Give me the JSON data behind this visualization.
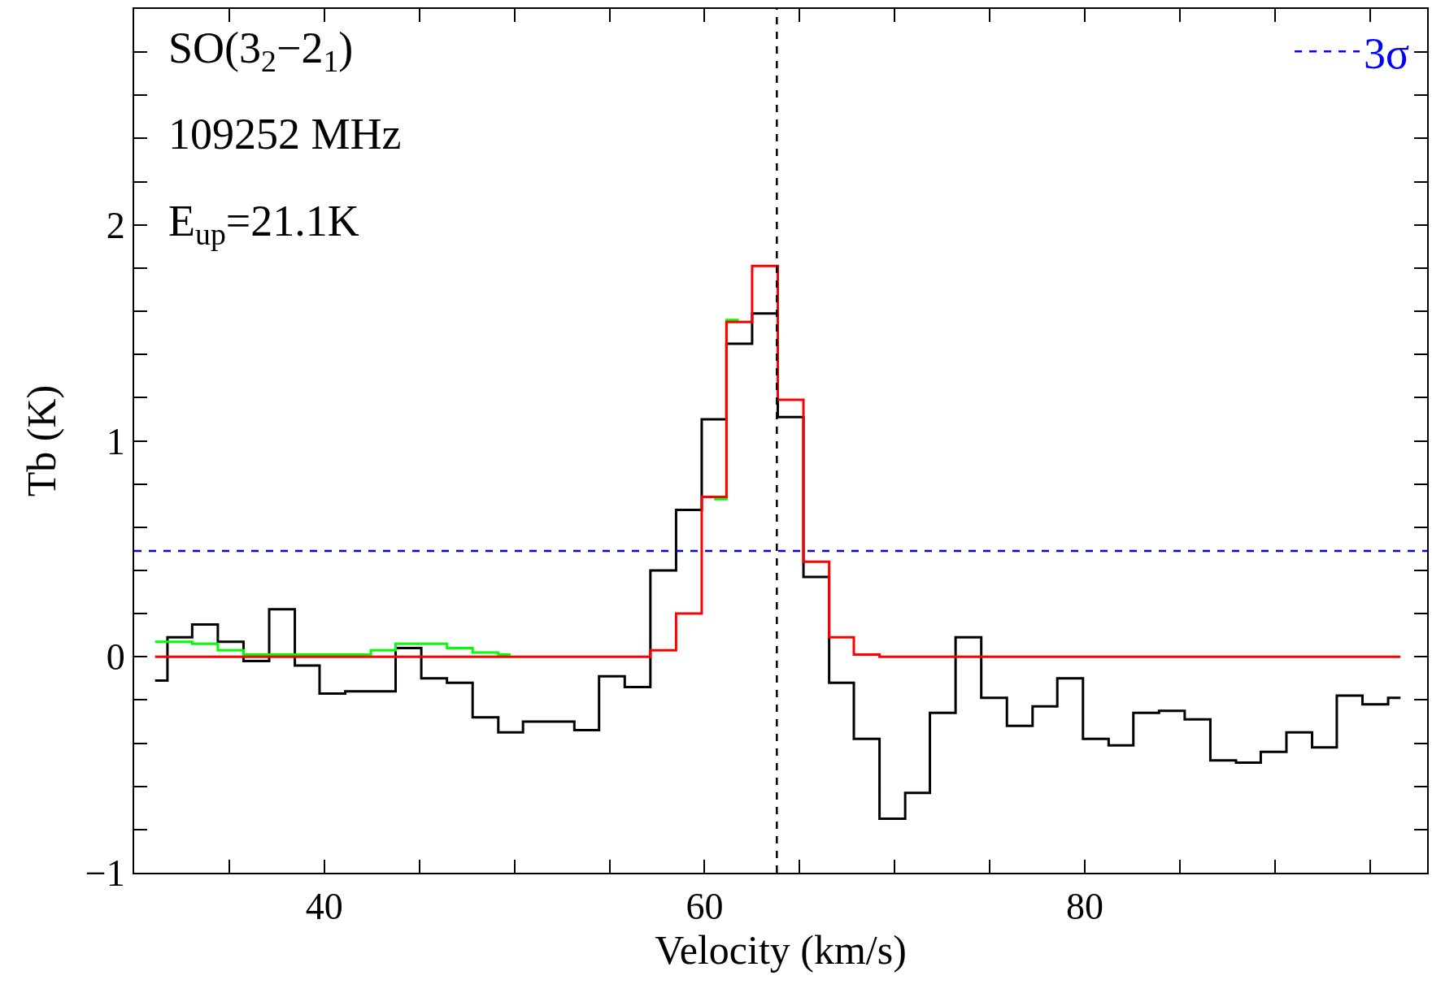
{
  "chart_data": {
    "type": "step",
    "xlabel": "Velocity (km/s)",
    "ylabel": "Tb (K)",
    "annotations": [
      "SO(3$_{2}$−2$_{1}$)",
      "109252 MHz",
      "E$_{up}$=21.1K"
    ],
    "x": [
      31.1,
      32.4,
      33.7,
      35.1,
      36.4,
      37.8,
      39.1,
      40.4,
      41.8,
      43.1,
      44.4,
      45.8,
      47.1,
      48.5,
      49.8,
      51.1,
      52.5,
      53.8,
      55.1,
      56.5,
      57.8,
      59.2,
      60.5,
      61.8,
      63.2,
      64.5,
      65.9,
      67.2,
      68.5,
      69.9,
      71.2,
      72.5,
      73.9,
      75.2,
      76.6,
      77.9,
      79.2,
      80.6,
      81.9,
      83.2,
      84.6,
      85.9,
      87.3,
      88.6,
      89.9,
      91.3,
      92.6,
      93.9,
      95.3,
      96.6
    ],
    "series": [
      {
        "color": "#000000",
        "values": [
          -0.11,
          0.09,
          0.15,
          0.07,
          -0.02,
          0.22,
          -0.04,
          -0.17,
          -0.16,
          -0.16,
          0.04,
          -0.1,
          -0.12,
          -0.28,
          -0.35,
          -0.3,
          -0.3,
          -0.34,
          -0.09,
          -0.14,
          0.4,
          0.68,
          1.1,
          1.45,
          1.59,
          1.11,
          0.37,
          -0.12,
          -0.38,
          -0.75,
          -0.63,
          -0.26,
          0.09,
          -0.19,
          -0.32,
          -0.23,
          -0.1,
          -0.38,
          -0.41,
          -0.26,
          -0.25,
          -0.29,
          -0.48,
          -0.49,
          -0.44,
          -0.35,
          -0.42,
          -0.18,
          -0.22,
          -0.19
        ]
      },
      {
        "color": "#00ff00",
        "values": [
          0.07,
          0.07,
          0.06,
          0.03,
          0.01,
          0.01,
          0.01,
          0.01,
          0.01,
          0.03,
          0.06,
          0.06,
          0.04,
          0.02,
          0.01,
          null,
          null,
          null,
          null,
          null,
          null,
          null,
          0.73,
          1.56,
          null,
          null,
          null,
          null,
          null,
          null,
          null,
          null,
          null,
          null,
          null,
          null,
          null,
          null,
          null,
          null,
          null,
          null,
          null,
          null,
          null,
          null,
          null,
          null,
          null,
          null
        ]
      },
      {
        "color": "#ff0000",
        "values": [
          0,
          0,
          0,
          0,
          0,
          0,
          0,
          0,
          0,
          0,
          0,
          0,
          0,
          0,
          0,
          0,
          0,
          0,
          0,
          0,
          0.03,
          0.2,
          0.74,
          1.55,
          1.81,
          1.19,
          0.44,
          0.09,
          0.01,
          0,
          0,
          0,
          0,
          0,
          0,
          0,
          0,
          0,
          0,
          0,
          0,
          0,
          0,
          0,
          0,
          0,
          0,
          0,
          0,
          0
        ]
      }
    ],
    "ref_lines": [
      {
        "axis": "x",
        "value": 63.8,
        "color": "#000000",
        "line_style": "dashed"
      },
      {
        "axis": "y",
        "value": 0.49,
        "label": "3σ",
        "color": "#0000ff",
        "line_style": "dashed"
      }
    ],
    "xlim": [
      30,
      98
    ],
    "xticks": [
      {
        "value": 35,
        "label": null
      },
      40,
      {
        "value": 45,
        "label": null
      },
      {
        "value": 50,
        "label": null
      },
      {
        "value": 55,
        "label": null
      },
      60,
      {
        "value": 65,
        "label": null
      },
      {
        "value": 70,
        "label": null
      },
      {
        "value": 75,
        "label": null
      },
      80,
      {
        "value": 85,
        "label": null
      },
      {
        "value": 90,
        "label": null
      },
      {
        "value": 95,
        "label": null
      }
    ],
    "ylim": [
      -1,
      3
    ],
    "yticks": [
      -1,
      {
        "value": -0.8,
        "label": null
      },
      {
        "value": -0.6,
        "label": null
      },
      {
        "value": -0.4,
        "label": null
      },
      {
        "value": -0.2,
        "label": null
      },
      0,
      {
        "value": 0.2,
        "label": null
      },
      {
        "value": 0.4,
        "label": null
      },
      {
        "value": 0.6,
        "label": null
      },
      {
        "value": 0.8,
        "label": null
      },
      1,
      {
        "value": 1.2,
        "label": null
      },
      {
        "value": 1.4,
        "label": null
      },
      {
        "value": 1.6,
        "label": null
      },
      {
        "value": 1.8,
        "label": null
      },
      2,
      {
        "value": 2.2,
        "label": null
      },
      {
        "value": 2.4,
        "label": null
      },
      {
        "value": 2.6,
        "label": null
      },
      {
        "value": 2.8,
        "label": null
      }
    ],
    "legend": "top right"
  }
}
